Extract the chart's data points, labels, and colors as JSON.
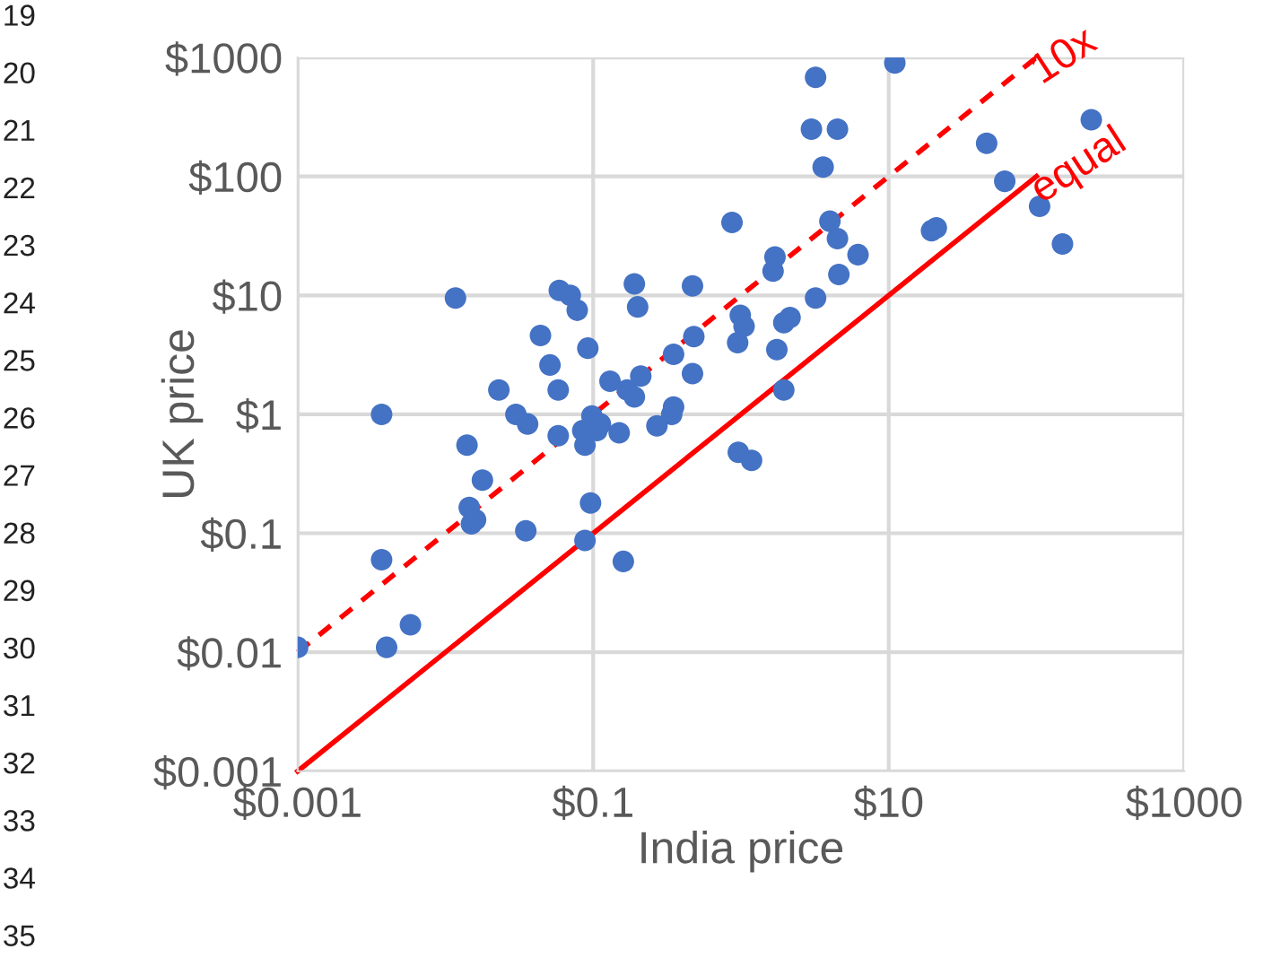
{
  "chart_data": {
    "type": "scatter",
    "xlabel": "India price",
    "ylabel": "UK price",
    "xlim": [
      0.001,
      1000
    ],
    "ylim": [
      0.001,
      1000
    ],
    "xticks": [
      {
        "value": 0.001,
        "label": "$0.001"
      },
      {
        "value": 0.1,
        "label": "$0.1"
      },
      {
        "value": 10,
        "label": "$10"
      },
      {
        "value": 1000,
        "label": "$1000"
      }
    ],
    "yticks": [
      {
        "value": 0.001,
        "label": "$0.001"
      },
      {
        "value": 0.01,
        "label": "$0.01"
      },
      {
        "value": 0.1,
        "label": "$0.1"
      },
      {
        "value": 1,
        "label": "$1"
      },
      {
        "value": 10,
        "label": "$10"
      },
      {
        "value": 100,
        "label": "$100"
      },
      {
        "value": 1000,
        "label": "$1000"
      }
    ],
    "log": "xy",
    "grid": true,
    "legend": false,
    "series": [
      {
        "marker": "circle",
        "color": "#4472c4",
        "x": [
          0.001,
          0.0037,
          0.0037,
          0.004,
          0.0058,
          0.0117,
          0.014,
          0.0145,
          0.015,
          0.016,
          0.0178,
          0.023,
          0.03,
          0.035,
          0.036,
          0.044,
          0.051,
          0.058,
          0.058,
          0.059,
          0.07,
          0.078,
          0.085,
          0.092,
          0.088,
          0.088,
          0.096,
          0.098,
          0.106,
          0.112,
          0.15,
          0.13,
          0.16,
          0.19,
          0.2,
          0.17,
          0.19,
          0.21,
          0.27,
          0.34,
          0.35,
          0.35,
          0.47,
          0.47,
          0.48,
          0.96,
          1.18,
          0.87,
          0.99,
          0.95,
          1.05,
          1.7,
          1.65,
          1.75,
          1.95,
          1.95,
          2.15,
          3.2,
          3.0,
          3.2,
          3.6,
          4.5,
          4.0,
          4.5,
          4.6,
          6.2,
          11,
          19.5,
          21,
          46,
          61,
          105,
          150,
          235
        ],
        "values": [
          0.011,
          1,
          0.06,
          0.011,
          0.017,
          9.5,
          0.55,
          0.165,
          0.12,
          0.13,
          0.28,
          1.6,
          1.0,
          0.105,
          0.83,
          4.6,
          2.6,
          1.6,
          0.66,
          11,
          10,
          7.5,
          0.73,
          3.6,
          0.55,
          0.087,
          0.18,
          0.97,
          0.73,
          0.83,
          0.7,
          1.9,
          0.058,
          12.5,
          8,
          1.6,
          1.4,
          2.1,
          0.8,
          1.0,
          3.2,
          1.15,
          2.2,
          12,
          4.5,
          0.48,
          0.41,
          41,
          6.8,
          4.0,
          5.5,
          21,
          16,
          3.5,
          1.6,
          5.9,
          6.5,
          9.5,
          250,
          680,
          120,
          250,
          42,
          30,
          15,
          22,
          900,
          35,
          37,
          190,
          91,
          56,
          27,
          300
        ]
      },
      {
        "type": "line",
        "name": "10x",
        "color": "#ff0000",
        "line_style": "dashed",
        "marker": "none",
        "x": [
          0.001,
          100
        ],
        "values": [
          0.01,
          1000
        ]
      },
      {
        "type": "line",
        "name": "equal",
        "color": "#ff0000",
        "line_style": "solid",
        "marker": "none",
        "x": [
          0.001,
          100
        ],
        "values": [
          0.001,
          100
        ]
      }
    ],
    "annotations": [
      "19",
      "20",
      "21",
      "22",
      "23",
      "24",
      "25",
      "26",
      "27",
      "28",
      "29",
      "30",
      "31",
      "32",
      "33",
      "34",
      "35"
    ]
  }
}
